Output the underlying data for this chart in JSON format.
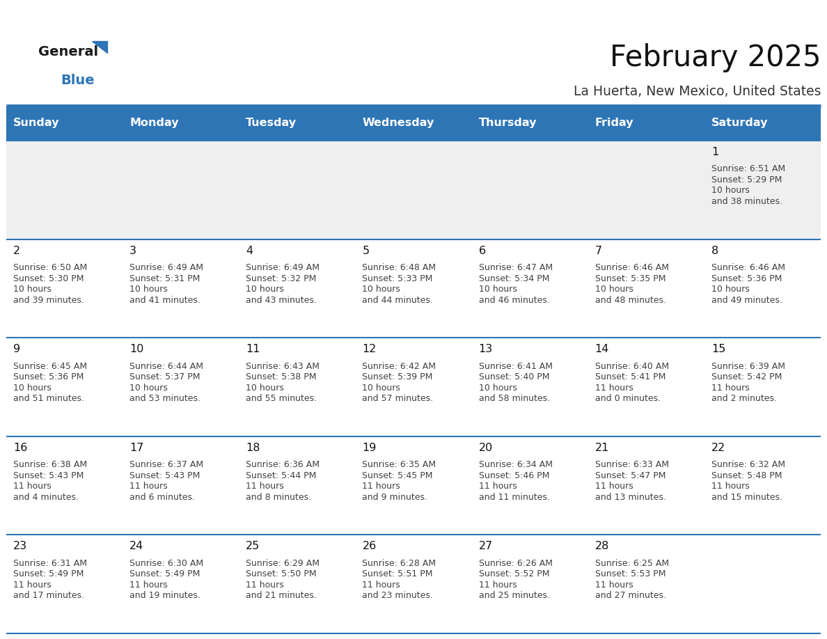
{
  "title": "February 2025",
  "subtitle": "La Huerta, New Mexico, United States",
  "header_bg_color": "#2E75B6",
  "header_text_color": "#FFFFFF",
  "bg_color": "#FFFFFF",
  "alt_row_bg": "#EFEFEF",
  "cell_border_color": "#2E75B6",
  "text_color": "#404040",
  "days_of_week": [
    "Sunday",
    "Monday",
    "Tuesday",
    "Wednesday",
    "Thursday",
    "Friday",
    "Saturday"
  ],
  "calendar_data": [
    [
      null,
      null,
      null,
      null,
      null,
      null,
      {
        "day": 1,
        "sunrise": "6:51 AM",
        "sunset": "5:29 PM",
        "daylight": "10 hours and 38 minutes."
      }
    ],
    [
      {
        "day": 2,
        "sunrise": "6:50 AM",
        "sunset": "5:30 PM",
        "daylight": "10 hours and 39 minutes."
      },
      {
        "day": 3,
        "sunrise": "6:49 AM",
        "sunset": "5:31 PM",
        "daylight": "10 hours and 41 minutes."
      },
      {
        "day": 4,
        "sunrise": "6:49 AM",
        "sunset": "5:32 PM",
        "daylight": "10 hours and 43 minutes."
      },
      {
        "day": 5,
        "sunrise": "6:48 AM",
        "sunset": "5:33 PM",
        "daylight": "10 hours and 44 minutes."
      },
      {
        "day": 6,
        "sunrise": "6:47 AM",
        "sunset": "5:34 PM",
        "daylight": "10 hours and 46 minutes."
      },
      {
        "day": 7,
        "sunrise": "6:46 AM",
        "sunset": "5:35 PM",
        "daylight": "10 hours and 48 minutes."
      },
      {
        "day": 8,
        "sunrise": "6:46 AM",
        "sunset": "5:36 PM",
        "daylight": "10 hours and 49 minutes."
      }
    ],
    [
      {
        "day": 9,
        "sunrise": "6:45 AM",
        "sunset": "5:36 PM",
        "daylight": "10 hours and 51 minutes."
      },
      {
        "day": 10,
        "sunrise": "6:44 AM",
        "sunset": "5:37 PM",
        "daylight": "10 hours and 53 minutes."
      },
      {
        "day": 11,
        "sunrise": "6:43 AM",
        "sunset": "5:38 PM",
        "daylight": "10 hours and 55 minutes."
      },
      {
        "day": 12,
        "sunrise": "6:42 AM",
        "sunset": "5:39 PM",
        "daylight": "10 hours and 57 minutes."
      },
      {
        "day": 13,
        "sunrise": "6:41 AM",
        "sunset": "5:40 PM",
        "daylight": "10 hours and 58 minutes."
      },
      {
        "day": 14,
        "sunrise": "6:40 AM",
        "sunset": "5:41 PM",
        "daylight": "11 hours and 0 minutes."
      },
      {
        "day": 15,
        "sunrise": "6:39 AM",
        "sunset": "5:42 PM",
        "daylight": "11 hours and 2 minutes."
      }
    ],
    [
      {
        "day": 16,
        "sunrise": "6:38 AM",
        "sunset": "5:43 PM",
        "daylight": "11 hours and 4 minutes."
      },
      {
        "day": 17,
        "sunrise": "6:37 AM",
        "sunset": "5:43 PM",
        "daylight": "11 hours and 6 minutes."
      },
      {
        "day": 18,
        "sunrise": "6:36 AM",
        "sunset": "5:44 PM",
        "daylight": "11 hours and 8 minutes."
      },
      {
        "day": 19,
        "sunrise": "6:35 AM",
        "sunset": "5:45 PM",
        "daylight": "11 hours and 9 minutes."
      },
      {
        "day": 20,
        "sunrise": "6:34 AM",
        "sunset": "5:46 PM",
        "daylight": "11 hours and 11 minutes."
      },
      {
        "day": 21,
        "sunrise": "6:33 AM",
        "sunset": "5:47 PM",
        "daylight": "11 hours and 13 minutes."
      },
      {
        "day": 22,
        "sunrise": "6:32 AM",
        "sunset": "5:48 PM",
        "daylight": "11 hours and 15 minutes."
      }
    ],
    [
      {
        "day": 23,
        "sunrise": "6:31 AM",
        "sunset": "5:49 PM",
        "daylight": "11 hours and 17 minutes."
      },
      {
        "day": 24,
        "sunrise": "6:30 AM",
        "sunset": "5:49 PM",
        "daylight": "11 hours and 19 minutes."
      },
      {
        "day": 25,
        "sunrise": "6:29 AM",
        "sunset": "5:50 PM",
        "daylight": "11 hours and 21 minutes."
      },
      {
        "day": 26,
        "sunrise": "6:28 AM",
        "sunset": "5:51 PM",
        "daylight": "11 hours and 23 minutes."
      },
      {
        "day": 27,
        "sunrise": "6:26 AM",
        "sunset": "5:52 PM",
        "daylight": "11 hours and 25 minutes."
      },
      {
        "day": 28,
        "sunrise": "6:25 AM",
        "sunset": "5:53 PM",
        "daylight": "11 hours and 27 minutes."
      },
      null
    ]
  ]
}
